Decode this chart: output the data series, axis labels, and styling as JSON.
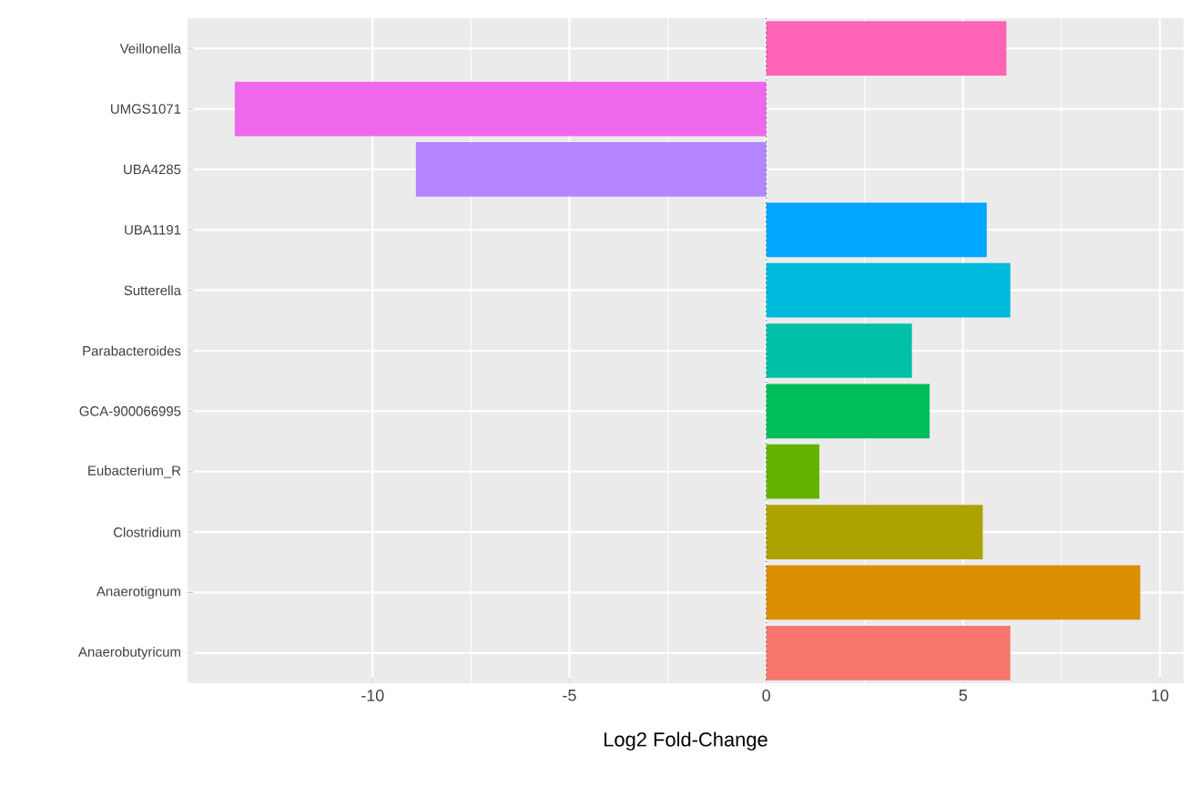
{
  "chart_data": {
    "type": "bar",
    "orientation": "horizontal",
    "xlabel": "Log2 Fold-Change",
    "categories": [
      "Veillonella",
      "UMGS1071",
      "UBA4285",
      "UBA1191",
      "Sutterella",
      "Parabacteroides",
      "GCA-900066995",
      "Eubacterium_R",
      "Clostridium",
      "Anaerotignum",
      "Anaerobutyricum"
    ],
    "values": [
      6.1,
      -13.5,
      -8.9,
      5.6,
      6.2,
      3.7,
      4.15,
      1.35,
      5.5,
      9.5,
      6.2
    ],
    "colors": [
      "#FF63B6",
      "#EF67EB",
      "#B385FF",
      "#00A6FF",
      "#00BADE",
      "#00C1A7",
      "#00BD5C",
      "#64B200",
      "#AEA200",
      "#DB8E00",
      "#F8766D"
    ],
    "xlim": [
      -14.7,
      10.6
    ],
    "xticks": [
      -10,
      -5,
      0,
      5,
      10
    ],
    "grid": true,
    "ref_lines": [
      {
        "axis": "x",
        "value": 0,
        "line_style": "dotted",
        "color": "#555555"
      }
    ]
  }
}
